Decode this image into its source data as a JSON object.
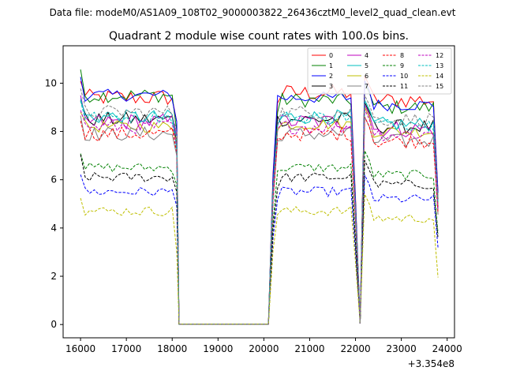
{
  "header": {
    "data_file": "Data file: modeM0/AS1A09_108T02_9000003822_26436cztM0_level2_quad_clean.evt"
  },
  "chart_data": {
    "type": "line",
    "title": "Quadrant 2 module wise count rates with 100.0s bins.",
    "xlabel": "",
    "ylabel": "",
    "x_offset_label": "+3.354e8",
    "xlim": [
      15620,
      24160
    ],
    "ylim": [
      -0.55,
      11.55
    ],
    "x_ticks": [
      16000,
      17000,
      18000,
      19000,
      20000,
      21000,
      22000,
      23000,
      24000
    ],
    "y_ticks": [
      0,
      2,
      4,
      6,
      8,
      10
    ],
    "grid": false,
    "legend_position": "top-right",
    "segments": [
      {
        "start": 16000,
        "end": 18150,
        "step": 100
      },
      {
        "start": 18200,
        "end": 20100,
        "step": 100
      },
      {
        "start": 20200,
        "end": 21900,
        "step": 100
      },
      {
        "start": 22000,
        "end": 22100,
        "step": 100
      },
      {
        "start": 22200,
        "end": 23800,
        "step": 100
      }
    ],
    "series": [
      {
        "name": "0",
        "color": "#ff0000",
        "dash": "solid",
        "level": 9.6,
        "seg1": 9.4,
        "seg2_lead": 9.3,
        "jitter": 0.35,
        "drop": 8.4
      },
      {
        "name": "1",
        "color": "#008000",
        "dash": "solid",
        "level": 9.3,
        "seg1": 9.5,
        "seg2_lead": 8.8,
        "jitter": 0.3,
        "drop": 8.0
      },
      {
        "name": "2",
        "color": "#0000ff",
        "dash": "solid",
        "level": 9.4,
        "seg1": 9.5,
        "seg2_lead": 9.4,
        "jitter": 0.25,
        "drop": 8.4
      },
      {
        "name": "3",
        "color": "#000000",
        "dash": "solid",
        "level": 8.5,
        "seg1": 8.5,
        "seg2_lead": 8.5,
        "jitter": 0.3,
        "drop": 7.5
      },
      {
        "name": "4",
        "color": "#bf00bf",
        "dash": "solid",
        "level": 8.4,
        "seg1": 8.4,
        "seg2_lead": 8.4,
        "jitter": 0.35,
        "drop": 7.8
      },
      {
        "name": "5",
        "color": "#00bfbf",
        "dash": "solid",
        "level": 8.6,
        "seg1": 8.6,
        "seg2_lead": 8.3,
        "jitter": 0.3,
        "drop": 7.2
      },
      {
        "name": "6",
        "color": "#bfbf00",
        "dash": "solid",
        "level": 8.3,
        "seg1": 8.2,
        "seg2_lead": 8.0,
        "jitter": 0.25,
        "drop": 7.6
      },
      {
        "name": "7",
        "color": "#808080",
        "dash": "solid",
        "level": 7.9,
        "seg1": 7.9,
        "seg2_lead": 7.6,
        "jitter": 0.3,
        "drop": 7.0
      },
      {
        "name": "8",
        "color": "#ff0000",
        "dash": "dashed",
        "level": 7.9,
        "seg1": 7.9,
        "seg2_lead": 7.6,
        "jitter": 0.3,
        "drop": 7.1
      },
      {
        "name": "9",
        "color": "#008000",
        "dash": "dashed",
        "level": 6.5,
        "seg1": 6.5,
        "seg2_lead": 6.2,
        "jitter": 0.2,
        "drop": 5.8
      },
      {
        "name": "10",
        "color": "#0000ff",
        "dash": "dashed",
        "level": 5.5,
        "seg1": 5.5,
        "seg2_lead": 5.2,
        "jitter": 0.2,
        "drop": 4.9
      },
      {
        "name": "11",
        "color": "#000000",
        "dash": "dashed",
        "level": 6.1,
        "seg1": 6.1,
        "seg2_lead": 5.8,
        "jitter": 0.2,
        "drop": 5.5
      },
      {
        "name": "12",
        "color": "#bf00bf",
        "dash": "dashed",
        "level": 8.2,
        "seg1": 8.2,
        "seg2_lead": 8.0,
        "jitter": 0.3,
        "drop": 7.4
      },
      {
        "name": "13",
        "color": "#00bfbf",
        "dash": "dashed",
        "level": 8.6,
        "seg1": 8.6,
        "seg2_lead": 8.4,
        "jitter": 0.25,
        "drop": 7.8
      },
      {
        "name": "14",
        "color": "#bfbf00",
        "dash": "dashed",
        "level": 4.7,
        "seg1": 4.7,
        "seg2_lead": 4.6,
        "jitter": 0.2,
        "drop": 3.0
      },
      {
        "name": "15",
        "color": "#808080",
        "dash": "dashed",
        "level": 8.8,
        "seg1": 8.8,
        "seg2_lead": 8.5,
        "jitter": 0.3,
        "drop": 8.0
      }
    ]
  }
}
